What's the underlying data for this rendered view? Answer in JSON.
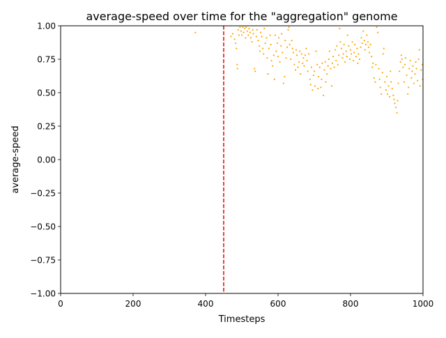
{
  "chart_data": {
    "type": "scatter",
    "title": "average-speed over time for the \"aggregation\" genome",
    "xlabel": "Timesteps",
    "ylabel": "average-speed",
    "xlim": [
      0,
      1000
    ],
    "ylim": [
      -1.0,
      1.0
    ],
    "x_ticks": [
      0,
      200,
      400,
      600,
      800,
      1000
    ],
    "x_tick_labels": [
      "0",
      "200",
      "400",
      "600",
      "800",
      "1000"
    ],
    "y_ticks": [
      -1.0,
      -0.75,
      -0.5,
      -0.25,
      0.0,
      0.25,
      0.5,
      0.75,
      1.0
    ],
    "y_tick_labels": [
      "−1.00",
      "−0.75",
      "−0.50",
      "−0.25",
      "0.00",
      "0.25",
      "0.50",
      "0.75",
      "1.00"
    ],
    "grid": false,
    "vline": {
      "x": 450,
      "color": "#dd0000",
      "style": "dashed"
    },
    "marker_color": "#ffa500",
    "series": [
      {
        "points": [
          [
            372,
            0.95
          ],
          [
            470,
            0.92
          ],
          [
            475,
            0.94
          ],
          [
            480,
            0.9
          ],
          [
            483,
            0.87
          ],
          [
            485,
            0.83
          ],
          [
            487,
            0.71
          ],
          [
            488,
            0.68
          ],
          [
            490,
            0.97
          ],
          [
            492,
            0.93
          ],
          [
            495,
            0.99
          ],
          [
            498,
            0.96
          ],
          [
            500,
            0.93
          ],
          [
            503,
            0.99
          ],
          [
            505,
            0.95
          ],
          [
            508,
            0.98
          ],
          [
            510,
            0.91
          ],
          [
            512,
            0.99
          ],
          [
            515,
            0.96
          ],
          [
            518,
            0.93
          ],
          [
            520,
            0.98
          ],
          [
            523,
            0.95
          ],
          [
            525,
            0.91
          ],
          [
            528,
            0.88
          ],
          [
            530,
            0.97
          ],
          [
            532,
            0.94
          ],
          [
            535,
            0.68
          ],
          [
            537,
            0.66
          ],
          [
            540,
            0.92
          ],
          [
            542,
            0.97
          ],
          [
            545,
            0.89
          ],
          [
            548,
            0.85
          ],
          [
            550,
            0.81
          ],
          [
            552,
            0.95
          ],
          [
            555,
            0.92
          ],
          [
            558,
            0.83
          ],
          [
            560,
            0.79
          ],
          [
            562,
            0.98
          ],
          [
            565,
            0.87
          ],
          [
            568,
            0.91
          ],
          [
            570,
            0.76
          ],
          [
            572,
            0.64
          ],
          [
            575,
            0.83
          ],
          [
            578,
            0.93
          ],
          [
            580,
            0.86
          ],
          [
            582,
            0.74
          ],
          [
            585,
            0.7
          ],
          [
            588,
            0.78
          ],
          [
            590,
            0.6
          ],
          [
            592,
            0.93
          ],
          [
            595,
            0.81
          ],
          [
            598,
            0.87
          ],
          [
            600,
            0.77
          ],
          [
            602,
            0.91
          ],
          [
            605,
            0.73
          ],
          [
            608,
            0.85
          ],
          [
            610,
            0.94
          ],
          [
            612,
            0.8
          ],
          [
            615,
            0.57
          ],
          [
            618,
            0.62
          ],
          [
            620,
            0.89
          ],
          [
            622,
            0.76
          ],
          [
            625,
            0.84
          ],
          [
            628,
            0.97
          ],
          [
            630,
            0.99
          ],
          [
            632,
            0.86
          ],
          [
            635,
            0.75
          ],
          [
            638,
            0.89
          ],
          [
            640,
            0.83
          ],
          [
            642,
            0.8
          ],
          [
            645,
            0.71
          ],
          [
            648,
            0.67
          ],
          [
            650,
            0.82
          ],
          [
            652,
            0.78
          ],
          [
            655,
            0.69
          ],
          [
            658,
            0.73
          ],
          [
            660,
            0.81
          ],
          [
            662,
            0.64
          ],
          [
            665,
            0.79
          ],
          [
            668,
            0.72
          ],
          [
            670,
            0.76
          ],
          [
            672,
            0.7
          ],
          [
            675,
            0.78
          ],
          [
            678,
            0.83
          ],
          [
            680,
            0.74
          ],
          [
            682,
            0.66
          ],
          [
            685,
            0.79
          ],
          [
            688,
            0.6
          ],
          [
            690,
            0.56
          ],
          [
            692,
            0.69
          ],
          [
            695,
            0.52
          ],
          [
            698,
            0.63
          ],
          [
            700,
            0.66
          ],
          [
            702,
            0.55
          ],
          [
            705,
            0.81
          ],
          [
            708,
            0.71
          ],
          [
            710,
            0.53
          ],
          [
            712,
            0.62
          ],
          [
            715,
            0.69
          ],
          [
            718,
            0.54
          ],
          [
            720,
            0.6
          ],
          [
            722,
            0.72
          ],
          [
            725,
            0.48
          ],
          [
            728,
            0.67
          ],
          [
            730,
            0.73
          ],
          [
            732,
            0.58
          ],
          [
            735,
            0.64
          ],
          [
            738,
            0.7
          ],
          [
            740,
            0.75
          ],
          [
            742,
            0.81
          ],
          [
            745,
            0.68
          ],
          [
            748,
            0.55
          ],
          [
            750,
            0.72
          ],
          [
            752,
            0.77
          ],
          [
            755,
            0.69
          ],
          [
            758,
            0.82
          ],
          [
            760,
            0.74
          ],
          [
            762,
            0.85
          ],
          [
            765,
            0.71
          ],
          [
            768,
            0.78
          ],
          [
            770,
            0.98
          ],
          [
            772,
            0.88
          ],
          [
            775,
            0.83
          ],
          [
            778,
            0.76
          ],
          [
            780,
            0.79
          ],
          [
            782,
            0.86
          ],
          [
            785,
            0.73
          ],
          [
            788,
            0.81
          ],
          [
            790,
            0.77
          ],
          [
            792,
            0.93
          ],
          [
            795,
            0.85
          ],
          [
            798,
            0.75
          ],
          [
            800,
            0.82
          ],
          [
            802,
            0.79
          ],
          [
            805,
            0.88
          ],
          [
            808,
            0.74
          ],
          [
            810,
            0.8
          ],
          [
            812,
            0.86
          ],
          [
            815,
            0.77
          ],
          [
            818,
            0.83
          ],
          [
            820,
            0.72
          ],
          [
            822,
            0.79
          ],
          [
            825,
            0.75
          ],
          [
            828,
            0.84
          ],
          [
            830,
            0.91
          ],
          [
            832,
            0.87
          ],
          [
            835,
            0.96
          ],
          [
            838,
            0.89
          ],
          [
            840,
            0.82
          ],
          [
            842,
            0.86
          ],
          [
            845,
            0.93
          ],
          [
            848,
            0.88
          ],
          [
            850,
            0.84
          ],
          [
            852,
            0.8
          ],
          [
            855,
            0.86
          ],
          [
            858,
            0.77
          ],
          [
            860,
            0.69
          ],
          [
            862,
            0.72
          ],
          [
            865,
            0.61
          ],
          [
            868,
            0.58
          ],
          [
            870,
            0.71
          ],
          [
            872,
            0.99
          ],
          [
            875,
            0.95
          ],
          [
            878,
            0.68
          ],
          [
            880,
            0.6
          ],
          [
            882,
            0.54
          ],
          [
            885,
            0.49
          ],
          [
            888,
            0.65
          ],
          [
            890,
            0.79
          ],
          [
            892,
            0.83
          ],
          [
            895,
            0.58
          ],
          [
            898,
            0.52
          ],
          [
            900,
            0.62
          ],
          [
            902,
            0.49
          ],
          [
            905,
            0.55
          ],
          [
            908,
            0.47
          ],
          [
            910,
            0.66
          ],
          [
            912,
            0.58
          ],
          [
            915,
            0.53
          ],
          [
            918,
            0.48
          ],
          [
            920,
            0.45
          ],
          [
            922,
            0.42
          ],
          [
            925,
            0.39
          ],
          [
            928,
            0.35
          ],
          [
            930,
            0.44
          ],
          [
            932,
            0.57
          ],
          [
            935,
            0.66
          ],
          [
            938,
            0.73
          ],
          [
            940,
            0.78
          ],
          [
            942,
            0.75
          ],
          [
            945,
            0.69
          ],
          [
            948,
            0.58
          ],
          [
            950,
            0.71
          ],
          [
            952,
            0.76
          ],
          [
            955,
            0.63
          ],
          [
            958,
            0.49
          ],
          [
            960,
            0.54
          ],
          [
            962,
            0.68
          ],
          [
            965,
            0.74
          ],
          [
            968,
            0.61
          ],
          [
            970,
            0.66
          ],
          [
            972,
            0.7
          ],
          [
            975,
            0.57
          ],
          [
            978,
            0.64
          ],
          [
            980,
            0.73
          ],
          [
            982,
            0.68
          ],
          [
            985,
            0.59
          ],
          [
            988,
            0.75
          ],
          [
            990,
            0.82
          ],
          [
            992,
            0.55
          ],
          [
            995,
            0.67
          ],
          [
            998,
            0.71
          ],
          [
            999,
            0.6
          ]
        ]
      }
    ]
  }
}
